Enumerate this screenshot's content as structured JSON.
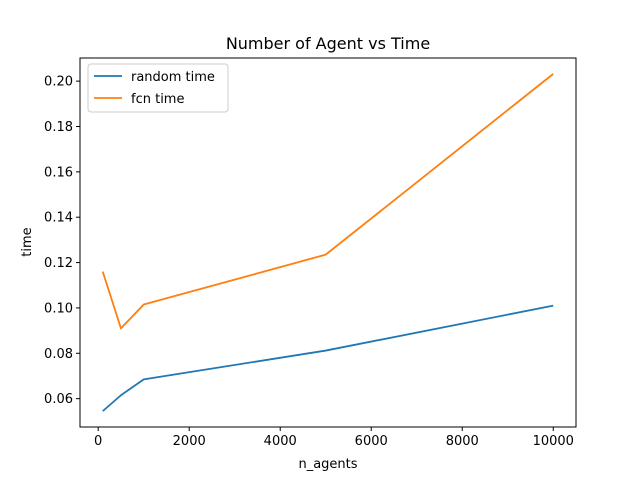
{
  "chart_data": {
    "type": "line",
    "title": "Number of Agent vs Time",
    "xlabel": "n_agents",
    "ylabel": "time",
    "xlim": [
      -400,
      10500
    ],
    "ylim": [
      0.0475,
      0.2102
    ],
    "xticks": [
      0,
      2000,
      4000,
      6000,
      8000,
      10000
    ],
    "yticks": [
      0.06,
      0.08,
      0.1,
      0.12,
      0.14,
      0.16,
      0.18,
      0.2
    ],
    "xtick_labels": [
      "0",
      "2000",
      "4000",
      "6000",
      "8000",
      "10000"
    ],
    "ytick_labels": [
      "0.06",
      "0.08",
      "0.10",
      "0.12",
      "0.14",
      "0.16",
      "0.18",
      "0.20"
    ],
    "grid": false,
    "legend_position": "upper-left",
    "series": [
      {
        "name": "random time",
        "color": "#1f77b4",
        "x": [
          100,
          500,
          1000,
          5000,
          10000
        ],
        "y": [
          0.0545,
          0.0615,
          0.0685,
          0.0812,
          0.101
        ]
      },
      {
        "name": "fcn time",
        "color": "#ff7f0e",
        "x": [
          100,
          500,
          1000,
          5000,
          10000
        ],
        "y": [
          0.116,
          0.091,
          0.1015,
          0.1235,
          0.2032
        ]
      }
    ]
  }
}
